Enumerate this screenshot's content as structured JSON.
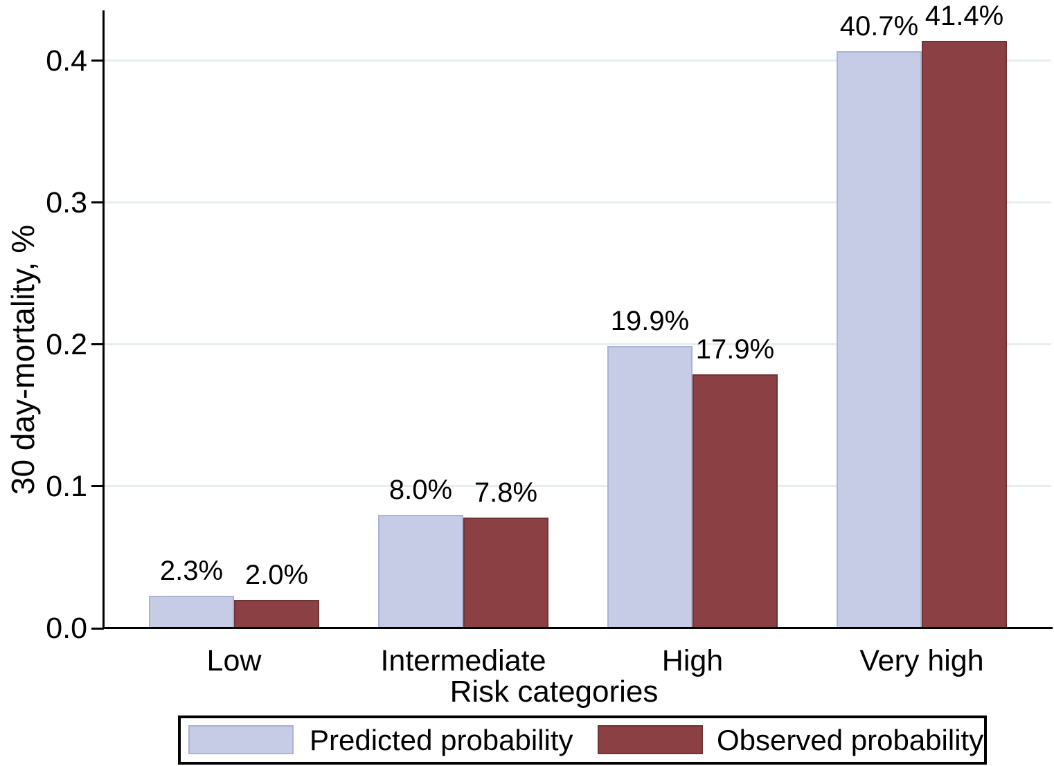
{
  "chart_data": {
    "type": "bar",
    "categories": [
      "Low",
      "Intermediate",
      "High",
      "Very high"
    ],
    "series": [
      {
        "name": "Predicted probability",
        "color": "#c6cbe6",
        "border_color": "#abb2d4",
        "values": [
          0.023,
          0.08,
          0.199,
          0.407
        ],
        "value_labels": [
          "2.3%",
          "8.0%",
          "19.9%",
          "40.7%"
        ]
      },
      {
        "name": "Observed probability",
        "color": "#8b4143",
        "border_color": "#6f3336",
        "values": [
          0.02,
          0.078,
          0.179,
          0.414
        ],
        "value_labels": [
          "2.0%",
          "7.8%",
          "17.9%",
          "41.4%"
        ]
      }
    ],
    "xlabel": "Risk categories",
    "ylabel": "30 day-mortality, %",
    "ylim": [
      0,
      0.44
    ],
    "yticks": [
      0,
      0.1,
      0.2,
      0.3,
      0.4
    ],
    "ytick_labels": [
      "0.0",
      "0.1",
      "0.2",
      "0.3",
      "0.4"
    ],
    "grid": true,
    "gridline_color": "#e7efee",
    "axis_color": "#000000",
    "text_color": "#000000",
    "legend_position": "bottom"
  }
}
